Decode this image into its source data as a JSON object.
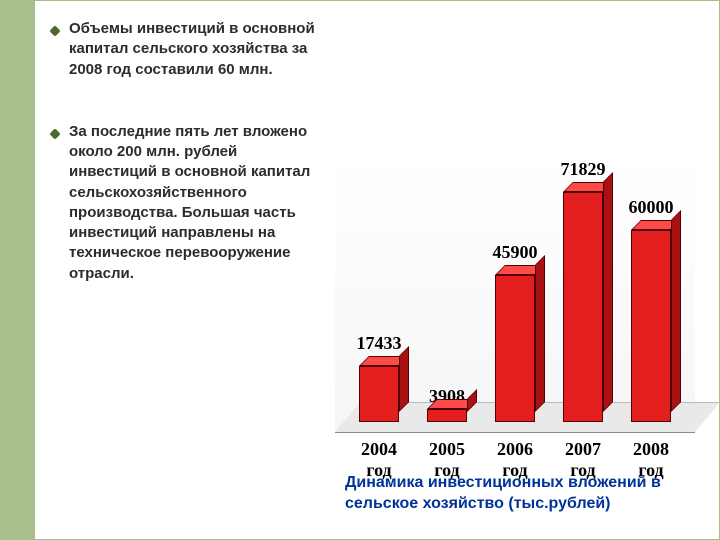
{
  "sidebar_color": "#a9bf8a",
  "bullets": [
    {
      "text": " Объемы  инвестиций  в  основной  капитал  сельского  хозяйства  за   2008  год  составили 60 млн."
    },
    {
      "text": "За  последние  пять  лет  вложено  около  200  млн.  рублей  инвестиций  в  основной капитал  сельскохозяйственного производства. Большая  часть инвестиций  направлены  на  техническое  перевооружение  отрасли."
    }
  ],
  "bullet_color": "#4a6a2a",
  "bullet_text_color": "#2c2c2c",
  "bullet_fontsize": 15,
  "chart": {
    "type": "bar",
    "style_3d": true,
    "categories": [
      "2004 год",
      "2005 год",
      "2006 год",
      "2007 год",
      "2008 год"
    ],
    "values": [
      17433,
      3908,
      45900,
      71829,
      60000
    ],
    "bar_color": "#e21e1e",
    "bar_shade": "#a81212",
    "bar_light": "#ff4a4a",
    "value_fontsize": 18,
    "value_font": "Times New Roman",
    "xlabel_fontsize": 18,
    "xlabel_font": "Times New Roman",
    "ymax": 75000,
    "background": "#ffffff",
    "floor_color": "#e9e9e9"
  },
  "caption": "Динамика инвестиционных вложений в сельское хозяйство  (тыс.рублей)",
  "caption_color": "#003399",
  "caption_fontsize": 16
}
